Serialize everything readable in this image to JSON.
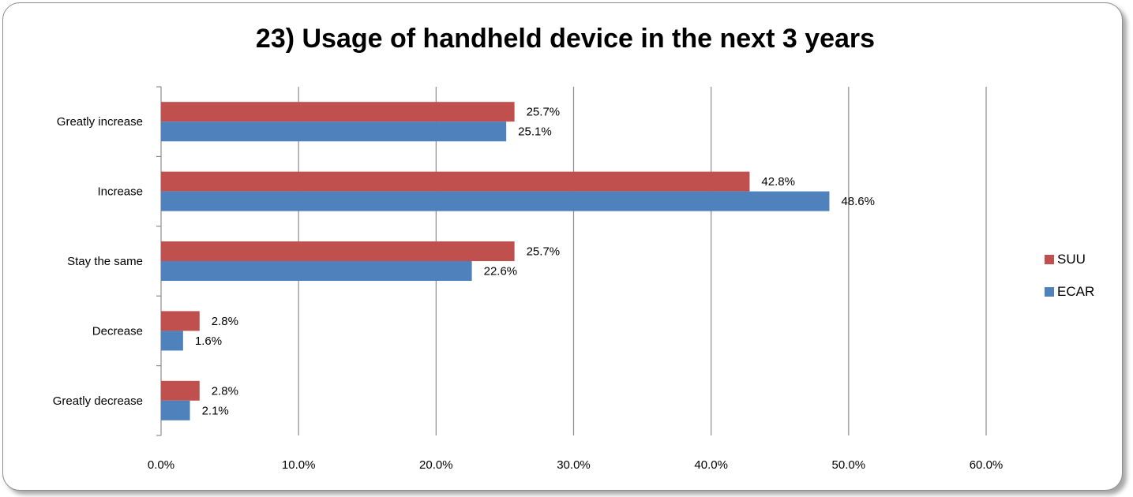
{
  "chart_data": {
    "type": "bar",
    "orientation": "horizontal",
    "title": "23) Usage of handheld device in the next 3 years",
    "categories": [
      "Greatly increase",
      "Increase",
      "Stay the same",
      "Decrease",
      "Greatly decrease"
    ],
    "series": [
      {
        "name": "SUU",
        "color": "#c0504d",
        "values": [
          25.7,
          42.8,
          25.7,
          2.8,
          2.8
        ],
        "labels": [
          "25.7%",
          "42.8%",
          "25.7%",
          "2.8%",
          "2.8%"
        ]
      },
      {
        "name": "ECAR",
        "color": "#4f81bd",
        "values": [
          25.1,
          48.6,
          22.6,
          1.6,
          2.1
        ],
        "labels": [
          "25.1%",
          "48.6%",
          "22.6%",
          "1.6%",
          "2.1%"
        ]
      }
    ],
    "xlim": [
      0,
      60
    ],
    "xticks": [
      "0.0%",
      "10.0%",
      "20.0%",
      "30.0%",
      "40.0%",
      "50.0%",
      "60.0%"
    ],
    "grid": "vertical",
    "legend_position": "right"
  }
}
